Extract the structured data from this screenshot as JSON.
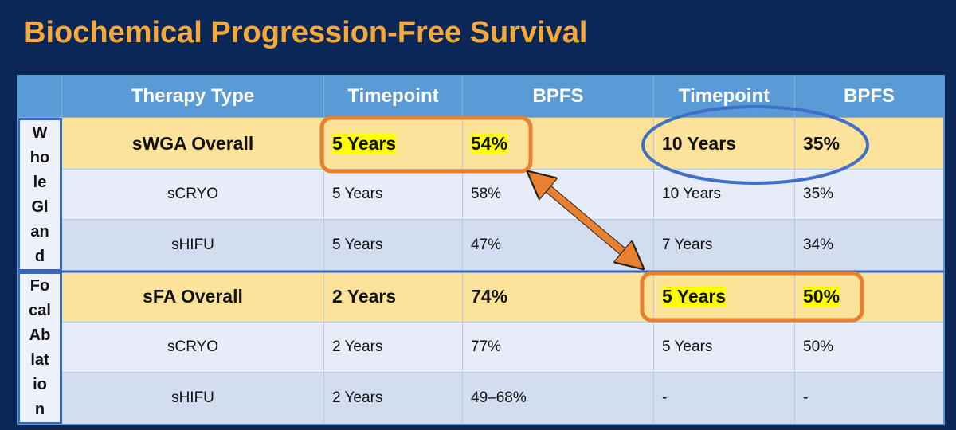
{
  "title": "Biochemical Progression-Free Survival",
  "table": {
    "header": [
      "Therapy Type",
      "Timepoint",
      "BPFS",
      "Timepoint",
      "BPFS"
    ],
    "groups": [
      {
        "label_lines": [
          "W",
          "ho",
          "le",
          "Gl",
          "an",
          "d"
        ],
        "rows": [
          [
            "sWGA Overall",
            "5 Years",
            "54%",
            "10 Years",
            "35%"
          ],
          [
            "sCRYO",
            "5 Years",
            "58%",
            "10 Years",
            "35%"
          ],
          [
            "sHIFU",
            "5 Years",
            "47%",
            "7 Years",
            "34%"
          ]
        ]
      },
      {
        "label_lines": [
          "Fo",
          "cal",
          "Ab",
          "lat",
          "io",
          "n"
        ],
        "rows": [
          [
            "sFA Overall",
            "2 Years",
            "74%",
            "5 Years",
            "50%"
          ],
          [
            "sCRYO",
            "2 Years",
            "77%",
            "5 Years",
            "50%"
          ],
          [
            "sHIFU",
            "2 Years",
            "49–68%",
            "-",
            "-"
          ]
        ]
      }
    ]
  }
}
